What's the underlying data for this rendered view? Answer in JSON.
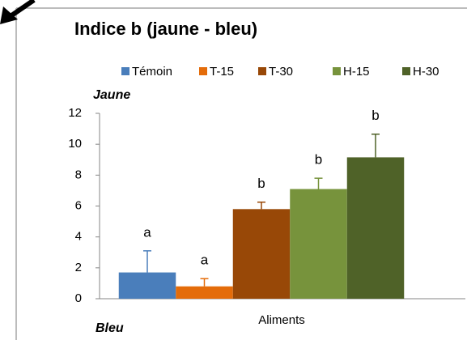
{
  "chart_data": {
    "type": "bar",
    "title": "Indice b (jaune - bleu)",
    "categories": [
      "Aliments"
    ],
    "series": [
      {
        "name": "Témoin",
        "color": "#4a7ebb",
        "values": [
          1.7
        ],
        "errors": [
          1.4
        ],
        "letters": [
          "a"
        ]
      },
      {
        "name": "T-15",
        "color": "#e46c0a",
        "values": [
          0.8
        ],
        "errors": [
          0.5
        ],
        "letters": [
          "a"
        ]
      },
      {
        "name": "T-30",
        "color": "#984807",
        "values": [
          5.8
        ],
        "errors": [
          0.45
        ],
        "letters": [
          "b"
        ]
      },
      {
        "name": "H-15",
        "color": "#77933c",
        "values": [
          7.1
        ],
        "errors": [
          0.7
        ],
        "letters": [
          "b"
        ]
      },
      {
        "name": "H-30",
        "color": "#4f6228",
        "values": [
          9.15
        ],
        "errors": [
          1.5
        ],
        "letters": [
          "b"
        ]
      }
    ],
    "y_top_label": "Jaune",
    "y_bottom_label": "Bleu",
    "ylim": [
      0,
      12
    ],
    "yticks": [
      0,
      2,
      4,
      6,
      8,
      10,
      12
    ],
    "grid": false,
    "legend": "top"
  }
}
